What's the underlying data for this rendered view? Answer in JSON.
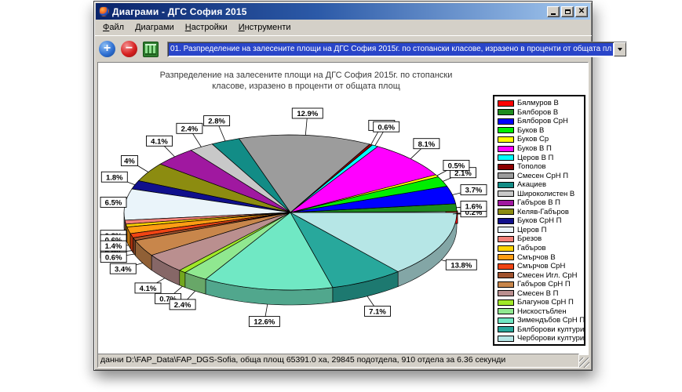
{
  "window": {
    "title": "Диаграми - ДГС София 2015",
    "controls": [
      "minimize-icon",
      "maximize-icon",
      "close-icon"
    ]
  },
  "menu": {
    "items": [
      {
        "label": "Файл"
      },
      {
        "label": "Диаграми"
      },
      {
        "label": "Настройки"
      },
      {
        "label": "Инструменти"
      }
    ]
  },
  "toolbar": {
    "buttons": [
      {
        "name": "add-chart",
        "icon": "plus-icon",
        "color": "#2E6FD0"
      },
      {
        "name": "remove-chart",
        "icon": "minus-icon",
        "color": "#D62020"
      },
      {
        "name": "chart-settings",
        "icon": "sliders-icon",
        "color": "#2E7A2E"
      }
    ],
    "combo_value": "01. Разпределение на залесените площи на ДГС София 2015г. по стопански  класове, изразено в проценти от общата пл",
    "combo_highlight_color": "#2945C9"
  },
  "chart_data": {
    "type": "pie",
    "style": "3d-exploded",
    "title": "Разпределение на залесените площи на ДГС София 2015г. по стопански класове, изразено в проценти от общата площ",
    "unit": "%",
    "legend_position": "right",
    "labels": "percent-callouts",
    "slices": [
      {
        "name": "Бялмуров В",
        "value": 0.2,
        "label": "0.2%",
        "color": "#FF0000",
        "exploded": true,
        "label_obscured": true
      },
      {
        "name": "Бялборов В",
        "value": 1.6,
        "label": "1.6%",
        "color": "#1E8C1E"
      },
      {
        "name": "Бялборов СрН",
        "value": 3.7,
        "label": "3.7%",
        "color": "#0000FF"
      },
      {
        "name": "Буков В",
        "value": 2.1,
        "label": "2.1%",
        "color": "#00EE00",
        "label_obscured": true
      },
      {
        "name": "Буков Ср",
        "value": 0.5,
        "label": "0.5%",
        "color": "#FFFF00"
      },
      {
        "name": "Буков В П",
        "value": 8.1,
        "label": "8.1%",
        "color": "#FF00FF"
      },
      {
        "name": "Церов В П",
        "value": 0.6,
        "label": "0.6%",
        "color": "#00FFFF"
      },
      {
        "name": "Тополов",
        "value": 0.3,
        "label": "0.3%",
        "color": "#8B0000",
        "label_obscured": true
      },
      {
        "name": "Смесен СрН П",
        "value": 12.9,
        "label": "12.9%",
        "color": "#9C9C9C"
      },
      {
        "name": "Акациев",
        "value": 2.8,
        "label": "2.8%",
        "color": "#128C86"
      },
      {
        "name": "Широколистен В",
        "value": 2.4,
        "label": "2.4%",
        "color": "#C8C8C8"
      },
      {
        "name": "Габъров В П",
        "value": 4.1,
        "label": "4.1%",
        "color": "#A018A0"
      },
      {
        "name": "Келяв-Габъров",
        "value": 4.0,
        "label": "4%",
        "color": "#8C8C10"
      },
      {
        "name": "Буков СрН П",
        "value": 1.8,
        "label": "1.8%",
        "color": "#10108C"
      },
      {
        "name": "Церов П",
        "value": 6.5,
        "label": "6.5%",
        "color": "#EAF4FA"
      },
      {
        "name": "Брезов",
        "value": 0.8,
        "label": "0.8%",
        "color": "#F28078",
        "label_obscured": true
      },
      {
        "name": "Габъров",
        "value": 0.6,
        "label": "0.6%",
        "color": "#FFD400"
      },
      {
        "name": "Смърчов В",
        "value": 1.4,
        "label": "1.4%",
        "color": "#FF9C14"
      },
      {
        "name": "Смърчов СрН",
        "value": 0.9,
        "label": "0.9%",
        "color": "#F04414",
        "label_obscured": true
      },
      {
        "name": "Смесен Игл. СрН",
        "value": 0.6,
        "label": "0.6%",
        "color": "#A0522D"
      },
      {
        "name": "Габъров СрН П",
        "value": 3.4,
        "label": "3.4%",
        "color": "#C8864B"
      },
      {
        "name": "Смесен В П",
        "value": 4.1,
        "label": "4.1%",
        "color": "#BA8F8F"
      },
      {
        "name": "Благунов СрН П",
        "value": 0.7,
        "label": "0.7%",
        "color": "#A0E828"
      },
      {
        "name": "Нискостъблен",
        "value": 2.4,
        "label": "2.4%",
        "color": "#90E890"
      },
      {
        "name": "Зимендъбов СрН П",
        "value": 12.6,
        "label": "12.6%",
        "color": "#70E8C4"
      },
      {
        "name": "Бялборови култури",
        "value": 7.1,
        "label": "7.1%",
        "color": "#28A89C"
      },
      {
        "name": "Черборови култури",
        "value": 13.8,
        "label": "13.8%",
        "color": "#B6E6E6"
      }
    ]
  },
  "statusbar": {
    "text": "данни D:\\FAP_Data\\FAP_DGS-Sofia, обща площ 65391.0 ха, 29845 подотдела, 910 отдела за 6.36 секунди"
  }
}
